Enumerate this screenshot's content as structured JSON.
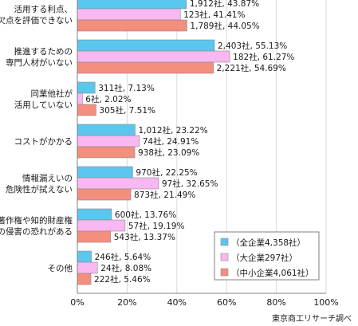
{
  "chart_data": {
    "type": "bar",
    "orientation": "horizontal",
    "categories": [
      [
        "活用する利点、",
        "欠点を評価できない"
      ],
      [
        "推進するための",
        "専門人材がいない"
      ],
      [
        "同業他社が",
        "活用していない"
      ],
      [
        "コストがかかる"
      ],
      [
        "情報漏えいの",
        "危険性が拭えない"
      ],
      [
        "著作権や知的財産権",
        "の侵害の恐れがある"
      ],
      [
        "その他"
      ]
    ],
    "series": [
      {
        "name": "（全企業4,358社）",
        "color": "#5bc6ee",
        "values": [
          43.87,
          55.13,
          7.13,
          23.22,
          22.25,
          13.76,
          5.64
        ],
        "labels": [
          "1,912社, 43.87%",
          "2,403社, 55.13%",
          "311社, 7.13%",
          "1,012社, 23.22%",
          "970社, 22.25%",
          "600社, 13.76%",
          "246社, 5.64%"
        ]
      },
      {
        "name": "（大企業297社）",
        "color": "#f9b8f2",
        "values": [
          41.41,
          61.27,
          2.02,
          24.91,
          32.65,
          19.19,
          8.08
        ],
        "labels": [
          "123社, 41.41%",
          "182社, 61.27%",
          "6社, 2.02%",
          "74社, 24.91%",
          "97社, 32.65%",
          "57社, 19.19%",
          "24社, 8.08%"
        ]
      },
      {
        "name": "（中小企業4,061社）",
        "color": "#f48e7e",
        "values": [
          44.05,
          54.69,
          7.51,
          23.09,
          21.49,
          13.37,
          5.46
        ],
        "labels": [
          "1,789社, 44.05%",
          "2,221社, 54.69%",
          "305社, 7.51%",
          "938社, 23.09%",
          "873社, 21.49%",
          "543社, 13.37%",
          "222社, 5.46%"
        ]
      }
    ],
    "xlim": [
      0,
      100
    ],
    "xticks": [
      "0%",
      "20%",
      "40%",
      "60%",
      "80%",
      "100%"
    ],
    "legend_position": "bottom-right",
    "source_note": "東京商工リサーチ調べ",
    "grid": true
  }
}
